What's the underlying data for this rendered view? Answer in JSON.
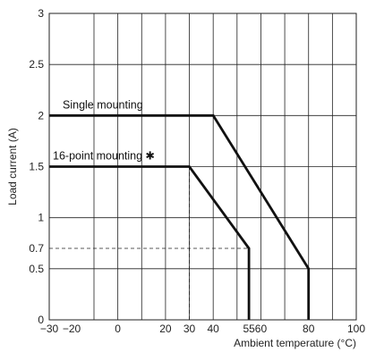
{
  "chart_data": {
    "type": "line",
    "title": "",
    "xlabel": "Ambient temperature (°C)",
    "ylabel": "Load current (A)",
    "xlim": [
      -30,
      100
    ],
    "ylim": [
      0,
      3
    ],
    "grid": true,
    "x_ticks": [
      {
        "value": -30,
        "label": "−30"
      },
      {
        "value": -20,
        "label": "−20"
      },
      {
        "value": 0,
        "label": "0"
      },
      {
        "value": 20,
        "label": "20"
      },
      {
        "value": 30,
        "label": "30"
      },
      {
        "value": 40,
        "label": "40"
      },
      {
        "value": 55,
        "label": "55"
      },
      {
        "value": 60,
        "label": "60"
      },
      {
        "value": 80,
        "label": "80"
      },
      {
        "value": 100,
        "label": "100"
      }
    ],
    "y_ticks": [
      {
        "value": 0,
        "label": "0"
      },
      {
        "value": 0.5,
        "label": "0.5"
      },
      {
        "value": 0.7,
        "label": "0.7"
      },
      {
        "value": 1,
        "label": "1"
      },
      {
        "value": 1.5,
        "label": "1.5"
      },
      {
        "value": 2,
        "label": "2"
      },
      {
        "value": 2.5,
        "label": "2.5"
      },
      {
        "value": 3,
        "label": "3"
      }
    ],
    "x_grid": [
      -30,
      -10,
      0,
      10,
      20,
      30,
      40,
      50,
      60,
      70,
      80,
      90,
      100
    ],
    "y_grid": [
      0,
      0.5,
      1,
      1.5,
      2,
      2.5,
      3
    ],
    "series": [
      {
        "name": "Single mounting",
        "points": [
          [
            -30,
            2
          ],
          [
            40,
            2
          ],
          [
            80,
            0.5
          ],
          [
            80,
            0
          ]
        ]
      },
      {
        "name": "16-point mounting ✱",
        "points": [
          [
            -30,
            1.5
          ],
          [
            30,
            1.5
          ],
          [
            55,
            0.7
          ],
          [
            55,
            0
          ]
        ]
      }
    ],
    "reference_lines": [
      {
        "points": [
          [
            30,
            0
          ],
          [
            30,
            1.5
          ]
        ]
      },
      {
        "points": [
          [
            -30,
            0.7
          ],
          [
            55,
            0.7
          ]
        ]
      }
    ]
  }
}
